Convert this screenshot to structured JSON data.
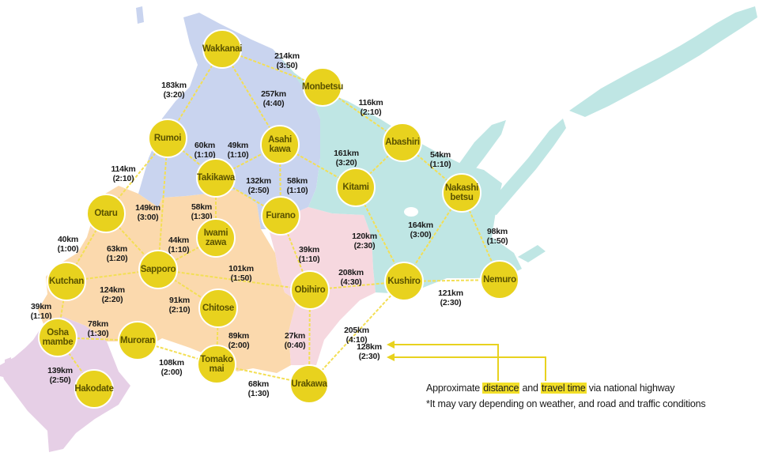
{
  "colors": {
    "city_fill": "#e8d21e",
    "city_stroke": "#ffffff",
    "route": "#f3df55",
    "arrow": "#e8d21e",
    "region_north": "#c9d4ef",
    "region_east": "#bfe6e4",
    "region_central": "#fbd9ad",
    "region_tokachi": "#f6d8df",
    "region_south": "#e6cfe6"
  },
  "cities": [
    {
      "id": "wakkanai",
      "lines": [
        "Wakkanai"
      ]
    },
    {
      "id": "monbetsu",
      "lines": [
        "Monbetsu"
      ]
    },
    {
      "id": "rumoi",
      "lines": [
        "Rumoi"
      ]
    },
    {
      "id": "asahikawa",
      "lines": [
        "Asahi",
        "kawa"
      ]
    },
    {
      "id": "abashiri",
      "lines": [
        "Abashiri"
      ]
    },
    {
      "id": "takikawa",
      "lines": [
        "Takikawa"
      ]
    },
    {
      "id": "kitami",
      "lines": [
        "Kitami"
      ]
    },
    {
      "id": "nakashibetsu",
      "lines": [
        "Nakashi",
        "betsu"
      ]
    },
    {
      "id": "otaru",
      "lines": [
        "Otaru"
      ]
    },
    {
      "id": "furano",
      "lines": [
        "Furano"
      ]
    },
    {
      "id": "iwamizawa",
      "lines": [
        "Iwami",
        "zawa"
      ]
    },
    {
      "id": "sapporo",
      "lines": [
        "Sapporo"
      ]
    },
    {
      "id": "kutchan",
      "lines": [
        "Kutchan"
      ]
    },
    {
      "id": "obihiro",
      "lines": [
        "Obihiro"
      ]
    },
    {
      "id": "kushiro",
      "lines": [
        "Kushiro"
      ]
    },
    {
      "id": "nemuro",
      "lines": [
        "Nemuro"
      ]
    },
    {
      "id": "chitose",
      "lines": [
        "Chitose"
      ]
    },
    {
      "id": "oshamambe",
      "lines": [
        "Osha",
        "mambe"
      ]
    },
    {
      "id": "muroran",
      "lines": [
        "Muroran"
      ]
    },
    {
      "id": "tomakomai",
      "lines": [
        "Tomako",
        "mai"
      ]
    },
    {
      "id": "urakawa",
      "lines": [
        "Urakawa"
      ]
    },
    {
      "id": "hakodate",
      "lines": [
        "Hakodate"
      ]
    }
  ],
  "routes": [
    {
      "a": "wakkanai",
      "b": "monbetsu",
      "lines": [
        "214km",
        "(3:50)"
      ]
    },
    {
      "a": "wakkanai",
      "b": "rumoi",
      "lines": [
        "183km",
        "(3:20)"
      ]
    },
    {
      "a": "wakkanai",
      "b": "asahikawa",
      "lines": [
        "257km",
        "(4:40)"
      ]
    },
    {
      "a": "monbetsu",
      "b": "abashiri",
      "lines": [
        "116km",
        "(2:10)"
      ]
    },
    {
      "a": "rumoi",
      "b": "takikawa",
      "lines": [
        "60km",
        "(1:10)"
      ]
    },
    {
      "a": "takikawa",
      "b": "asahikawa",
      "lines": [
        "49km",
        "(1:10)"
      ]
    },
    {
      "a": "asahikawa",
      "b": "kitami",
      "lines": [
        "161km",
        "(3:20)"
      ]
    },
    {
      "a": "abashiri",
      "b": "kitami",
      "lines": [
        "54km",
        "(1:10)"
      ]
    },
    {
      "a": "abashiri",
      "b": "nakashibetsu",
      "lines": [
        "114km",
        "(2:10)"
      ]
    },
    {
      "a": "rumoi",
      "b": "otaru",
      "lines": [
        "149km",
        "(3:00)"
      ]
    },
    {
      "a": "rumoi",
      "b": "sapporo",
      "lines": [
        "132km",
        "(2:50)"
      ]
    },
    {
      "a": "takikawa",
      "b": "furano",
      "lines": [
        "58km",
        "(1:10)"
      ]
    },
    {
      "a": "asahikawa",
      "b": "furano",
      "lines": [
        "58km",
        "(1:30)"
      ]
    },
    {
      "a": "takikawa",
      "b": "iwamizawa",
      "lines": [
        "44km",
        "(1:10)"
      ]
    },
    {
      "a": "iwamizawa",
      "b": "sapporo",
      "lines": [
        "40km",
        "(1:00)"
      ]
    },
    {
      "a": "otaru",
      "b": "kutchan",
      "lines": [
        "63km",
        "(1:20)"
      ]
    },
    {
      "a": "otaru",
      "b": "sapporo",
      "lines": [
        "39km",
        "(1:10)"
      ]
    },
    {
      "a": "furano",
      "b": "obihiro",
      "lines": [
        "120km",
        "(2:30)"
      ]
    },
    {
      "a": "kitami",
      "b": "kushiro",
      "lines": [
        "164km",
        "(3:00)"
      ]
    },
    {
      "a": "nakashibetsu",
      "b": "kushiro",
      "lines": [
        "98km",
        "(1:50)"
      ]
    },
    {
      "a": "nakashibetsu",
      "b": "nemuro",
      "lines": [
        "101km",
        "(1:50)"
      ]
    },
    {
      "a": "sapporo",
      "b": "obihiro",
      "lines": [
        "208km",
        "(4:30)"
      ]
    },
    {
      "a": "obihiro",
      "b": "kushiro",
      "lines": [
        "121km",
        "(2:30)"
      ]
    },
    {
      "a": "kushiro",
      "b": "nemuro",
      "lines": [
        "124km",
        "(2:20)"
      ]
    },
    {
      "a": "kutchan",
      "b": "sapporo",
      "lines": [
        "91km",
        "(2:10)"
      ]
    },
    {
      "a": "sapporo",
      "b": "chitose",
      "lines": [
        "39km",
        "(1:10)"
      ]
    },
    {
      "a": "kutchan",
      "b": "oshamambe",
      "lines": [
        "78km",
        "(1:30)"
      ]
    },
    {
      "a": "oshamambe",
      "b": "muroran",
      "lines": [
        "89km",
        "(2:00)"
      ]
    },
    {
      "a": "chitose",
      "b": "tomakomai",
      "lines": [
        "27km",
        "(0:40)"
      ]
    },
    {
      "a": "obihiro",
      "b": "urakawa",
      "lines": [
        "139km",
        "(2:50)"
      ]
    },
    {
      "a": "oshamambe",
      "b": "hakodate",
      "lines": [
        "108km",
        "(2:00)"
      ]
    },
    {
      "a": "muroran",
      "b": "tomakomai",
      "lines": [
        "68km",
        "(1:30)"
      ]
    },
    {
      "a": "tomakomai",
      "b": "urakawa",
      "lines": [
        "128km",
        "(2:30)"
      ]
    },
    {
      "a": "kushiro",
      "b": "urakawa",
      "lines": [
        "205km",
        "(4:10)"
      ]
    }
  ],
  "legend": {
    "prefix": "Approximate ",
    "distance": "distance",
    "and": " and ",
    "travel_time": "travel time",
    "suffix": " via national highway",
    "note": "*It may vary depending on weather, and road and traffic conditions"
  }
}
